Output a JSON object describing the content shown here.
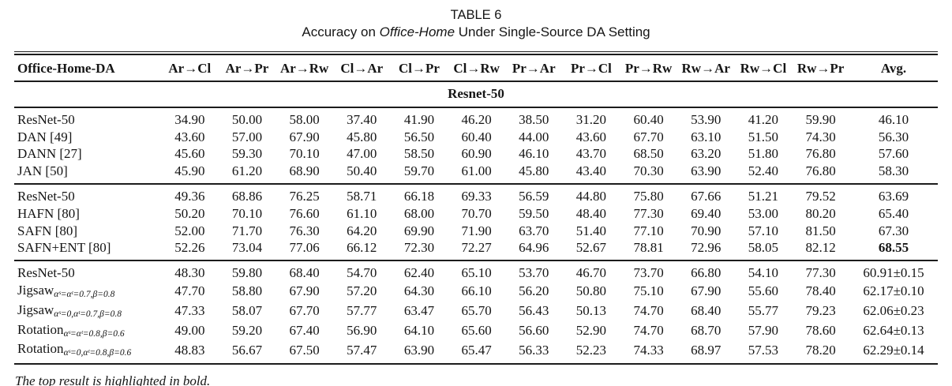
{
  "page": {
    "title": "TABLE 6",
    "subtitle": {
      "prefix": "Accuracy on ",
      "emph": "Office-Home",
      "suffix": " Under Single-Source DA Setting"
    },
    "footnote": "The top result is highlighted in bold."
  },
  "table": {
    "columns": [
      "Office-Home-DA",
      "Ar→Cl",
      "Ar→Pr",
      "Ar→Rw",
      "Cl→Ar",
      "Cl→Pr",
      "Cl→Rw",
      "Pr→Ar",
      "Pr→Cl",
      "Pr→Rw",
      "Rw→Ar",
      "Rw→Cl",
      "Rw→Pr",
      "Avg."
    ],
    "section_header": "Resnet-50",
    "groups": [
      {
        "rows": [
          {
            "label": "ResNet-50",
            "sub": "",
            "values": [
              "34.90",
              "50.00",
              "58.00",
              "37.40",
              "41.90",
              "46.20",
              "38.50",
              "31.20",
              "60.40",
              "53.90",
              "41.20",
              "59.90",
              "46.10"
            ],
            "bold": []
          },
          {
            "label": "DAN [49]",
            "sub": "",
            "values": [
              "43.60",
              "57.00",
              "67.90",
              "45.80",
              "56.50",
              "60.40",
              "44.00",
              "43.60",
              "67.70",
              "63.10",
              "51.50",
              "74.30",
              "56.30"
            ],
            "bold": []
          },
          {
            "label": "DANN [27]",
            "sub": "",
            "values": [
              "45.60",
              "59.30",
              "70.10",
              "47.00",
              "58.50",
              "60.90",
              "46.10",
              "43.70",
              "68.50",
              "63.20",
              "51.80",
              "76.80",
              "57.60"
            ],
            "bold": []
          },
          {
            "label": "JAN [50]",
            "sub": "",
            "values": [
              "45.90",
              "61.20",
              "68.90",
              "50.40",
              "59.70",
              "61.00",
              "45.80",
              "43.40",
              "70.30",
              "63.90",
              "52.40",
              "76.80",
              "58.30"
            ],
            "bold": []
          }
        ]
      },
      {
        "rows": [
          {
            "label": "ResNet-50",
            "sub": "",
            "values": [
              "49.36",
              "68.86",
              "76.25",
              "58.71",
              "66.18",
              "69.33",
              "56.59",
              "44.80",
              "75.80",
              "67.66",
              "51.21",
              "79.52",
              "63.69"
            ],
            "bold": []
          },
          {
            "label": "HAFN [80]",
            "sub": "",
            "values": [
              "50.20",
              "70.10",
              "76.60",
              "61.10",
              "68.00",
              "70.70",
              "59.50",
              "48.40",
              "77.30",
              "69.40",
              "53.00",
              "80.20",
              "65.40"
            ],
            "bold": []
          },
          {
            "label": "SAFN [80]",
            "sub": "",
            "values": [
              "52.00",
              "71.70",
              "76.30",
              "64.20",
              "69.90",
              "71.90",
              "63.70",
              "51.40",
              "77.10",
              "70.90",
              "57.10",
              "81.50",
              "67.30"
            ],
            "bold": []
          },
          {
            "label": "SAFN+ENT [80]",
            "sub": "",
            "values": [
              "52.26",
              "73.04",
              "77.06",
              "66.12",
              "72.30",
              "72.27",
              "64.96",
              "52.67",
              "78.81",
              "72.96",
              "58.05",
              "82.12",
              "68.55"
            ],
            "bold": [
              12
            ]
          }
        ]
      },
      {
        "rows": [
          {
            "label": "ResNet-50",
            "sub": "",
            "values": [
              "48.30",
              "59.80",
              "68.40",
              "54.70",
              "62.40",
              "65.10",
              "53.70",
              "46.70",
              "73.70",
              "66.80",
              "54.10",
              "77.30",
              "60.91±0.15"
            ],
            "bold": []
          },
          {
            "label": "Jigsaw",
            "sub": "αˢ=αᵗ=0.7,β=0.8",
            "values": [
              "47.70",
              "58.80",
              "67.90",
              "57.20",
              "64.30",
              "66.10",
              "56.20",
              "50.80",
              "75.10",
              "67.90",
              "55.60",
              "78.40",
              "62.17±0.10"
            ],
            "bold": []
          },
          {
            "label": "Jigsaw",
            "sub": "αˢ=0,αᵗ=0.7,β=0.8",
            "values": [
              "47.33",
              "58.07",
              "67.70",
              "57.77",
              "63.47",
              "65.70",
              "56.43",
              "50.13",
              "74.70",
              "68.40",
              "55.77",
              "79.23",
              "62.06±0.23"
            ],
            "bold": []
          },
          {
            "label": "Rotation",
            "sub": "αˢ=αᵗ=0.8,β=0.6",
            "values": [
              "49.00",
              "59.20",
              "67.40",
              "56.90",
              "64.10",
              "65.60",
              "56.60",
              "52.90",
              "74.70",
              "68.70",
              "57.90",
              "78.60",
              "62.64±0.13"
            ],
            "bold": []
          },
          {
            "label": "Rotation",
            "sub": "αˢ=0,αᵗ=0.8,β=0.6",
            "values": [
              "48.83",
              "56.67",
              "67.50",
              "57.47",
              "63.90",
              "65.47",
              "56.33",
              "52.23",
              "74.33",
              "68.97",
              "57.53",
              "78.20",
              "62.29±0.14"
            ],
            "bold": []
          }
        ]
      }
    ]
  }
}
